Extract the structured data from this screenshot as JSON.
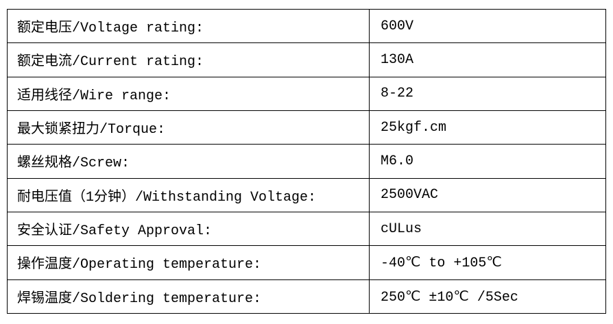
{
  "colors": {
    "border": "#000000",
    "text": "#000000",
    "background": "#ffffff"
  },
  "table": {
    "rows": [
      {
        "label": "额定电压/Voltage rating:",
        "value": "600V"
      },
      {
        "label": "额定电流/Current rating:",
        "value": "130A"
      },
      {
        "label": "适用线径/Wire range:",
        "value": "8-22"
      },
      {
        "label": "最大锁紧扭力/Torque:",
        "value": "25kgf.cm"
      },
      {
        "label": "螺丝规格/Screw:",
        "value": "M6.0"
      },
      {
        "label": "耐电压值（1分钟）/Withstanding Voltage:",
        "value": "2500VAC"
      },
      {
        "label": "安全认证/Safety Approval:",
        "value": "cULus"
      },
      {
        "label": "操作温度/Operating temperature:",
        "value": "-40℃ to +105℃"
      },
      {
        "label": "焊锡温度/Soldering temperature:",
        "value": "250℃ ±10℃ /5Sec"
      }
    ]
  }
}
